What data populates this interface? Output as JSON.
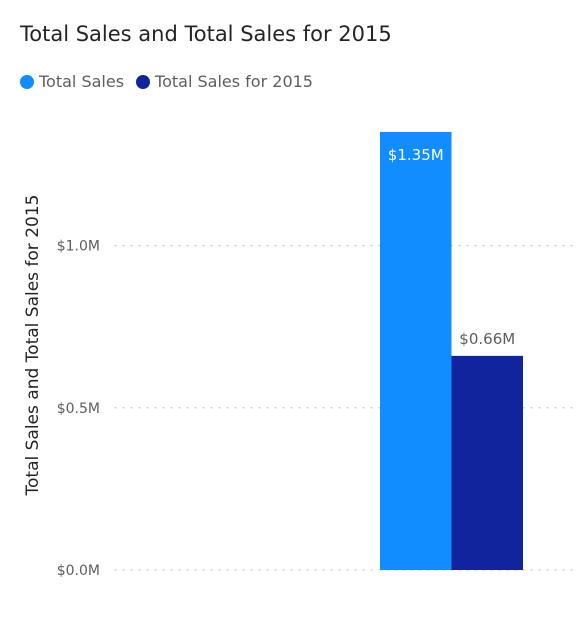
{
  "title": "Total Sales and Total Sales for 2015",
  "legend": [
    {
      "label": "Total Sales",
      "color": "#118dff"
    },
    {
      "label": "Total Sales for 2015",
      "color": "#12239e"
    }
  ],
  "chart_data": {
    "type": "bar",
    "title": "Total Sales and Total Sales for 2015",
    "xlabel": "",
    "ylabel": "Total Sales and Total Sales for 2015",
    "ylim": [
      0,
      1350000
    ],
    "yticks": [
      {
        "value": 0,
        "label": "$0.0M"
      },
      {
        "value": 500000,
        "label": "$0.5M"
      },
      {
        "value": 1000000,
        "label": "$1.0M"
      }
    ],
    "grid": true,
    "legend_position": "top-left",
    "series": [
      {
        "name": "Total Sales",
        "values": [
          1350000
        ],
        "labels": [
          "$1.35M"
        ],
        "color": "#118dff",
        "label_inside": true
      },
      {
        "name": "Total Sales for 2015",
        "values": [
          660000
        ],
        "labels": [
          "$0.66M"
        ],
        "color": "#12239e",
        "label_inside": false
      }
    ]
  }
}
